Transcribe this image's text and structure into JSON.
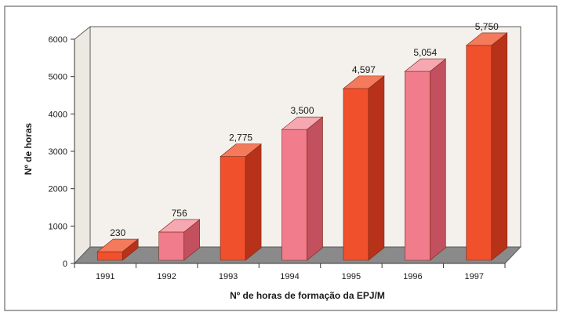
{
  "chart_data": {
    "type": "bar",
    "categories": [
      "1991",
      "1992",
      "1993",
      "1994",
      "1995",
      "1996",
      "1997"
    ],
    "values": [
      230,
      756,
      2775,
      3500,
      4597,
      5054,
      5750
    ],
    "value_labels": [
      "230",
      "756",
      "2,775",
      "3,500",
      "4,597",
      "5,054",
      "5,750"
    ],
    "ylabel": "Nº de horas",
    "xlabel": "Nº de horas de formação da EPJ/M",
    "ylim": [
      0,
      6000
    ],
    "yticks": [
      "0",
      "1000",
      "2000",
      "3000",
      "4000",
      "5000",
      "6000"
    ],
    "ytick_values": [
      0,
      1000,
      2000,
      3000,
      4000,
      5000,
      6000
    ],
    "grid": false,
    "three_d": true,
    "bar_color_pattern": [
      "red",
      "pink"
    ],
    "colors": {
      "red_front": "#f0502c",
      "red_side": "#b8321a",
      "red_top": "#f47a5c",
      "pink_front": "#f07c8c",
      "pink_side": "#c2505e",
      "pink_top": "#f6a8b2",
      "floor": "#8a8a8a",
      "backwall": "#f4f1ec",
      "frame": "#5b5b5b"
    }
  }
}
